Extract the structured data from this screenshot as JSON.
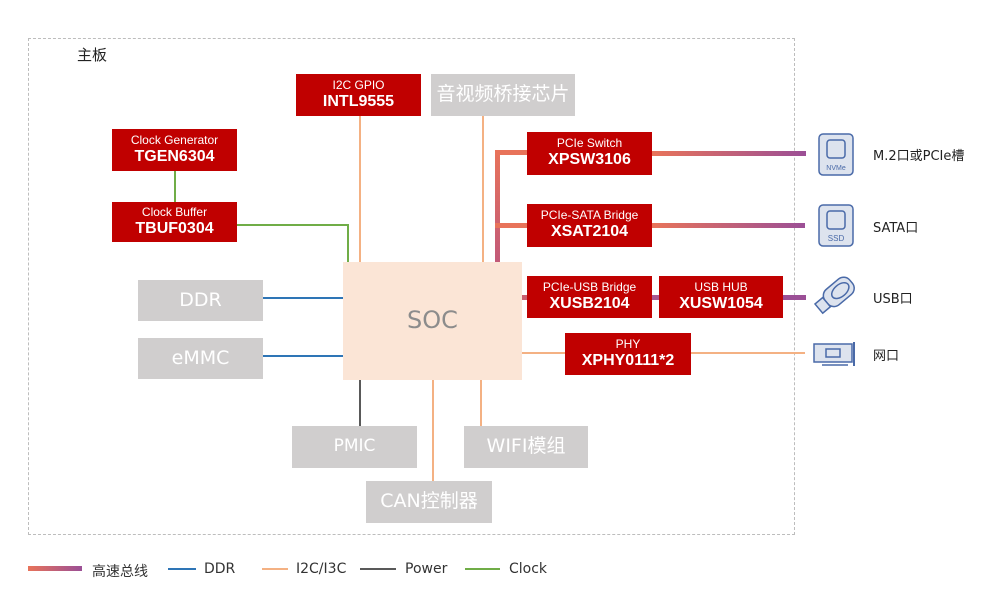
{
  "board_label": "主板",
  "soc": "SOC",
  "chips": {
    "i2c_gpio": {
      "function": "I2C GPIO",
      "model": "INTL9555"
    },
    "clock_generator": {
      "function": "Clock Generator",
      "model": "TGEN6304"
    },
    "clock_buffer": {
      "function": "Clock Buffer",
      "model": "TBUF0304"
    },
    "pcie_switch": {
      "function": "PCIe Switch",
      "model": "XPSW3106"
    },
    "pcie_sata": {
      "function": "PCIe-SATA Bridge",
      "model": "XSAT2104"
    },
    "pcie_usb": {
      "function": "PCIe-USB Bridge",
      "model": "XUSB2104"
    },
    "usb_hub": {
      "function": "USB HUB",
      "model": "XUSW1054"
    },
    "phy": {
      "function": "PHY",
      "model": "XPHY0111*2"
    }
  },
  "peripherals": {
    "av_bridge": "音视频桥接芯片",
    "ddr": "DDR",
    "emmc": "eMMC",
    "pmic": "PMIC",
    "wifi": "WIFI模组",
    "can": "CAN控制器"
  },
  "ports": [
    {
      "label": "M.2口或PCIe槽",
      "icon": "nvme-icon",
      "icon_text": "NVMe"
    },
    {
      "label": "SATA口",
      "icon": "ssd-icon",
      "icon_text": "SSD"
    },
    {
      "label": "USB口",
      "icon": "usb-drive-icon"
    },
    {
      "label": "网口",
      "icon": "network-card-icon"
    }
  ],
  "legend": [
    {
      "label": "高速总线",
      "color": "#e8735a to #9b4f96"
    },
    {
      "label": "DDR",
      "color": "#2e75b6"
    },
    {
      "label": "I2C/I3C",
      "color": "#f4b183"
    },
    {
      "label": "Power",
      "color": "#595959"
    },
    {
      "label": "Clock",
      "color": "#70ad47"
    }
  ],
  "colors": {
    "chip": "#c00000",
    "peripheral": "#d0cece",
    "soc": "#fbe5d6",
    "icon": "#4a6aa8"
  }
}
